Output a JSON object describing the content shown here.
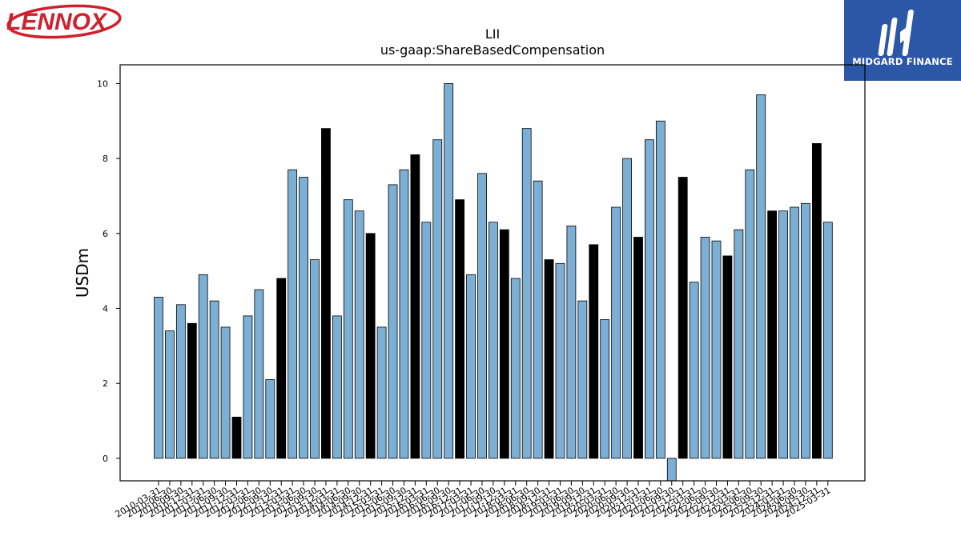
{
  "logos": {
    "left_brand": "LENNOX",
    "right_brand": "MIDGARD FINANCE"
  },
  "colors": {
    "bar_default": "#7bafd4",
    "bar_highlight": "#000000",
    "bar_edge": "#000000",
    "lennox_red": "#d0202e",
    "midgard_blue": "#2c57a6"
  },
  "chart_data": {
    "type": "bar",
    "title": "LII",
    "subtitle": "us-gaap:ShareBasedCompensation",
    "ylabel": "USDm",
    "xlabel": "",
    "ylim": [
      -0.6,
      10.5
    ],
    "yticks": [
      0,
      2,
      4,
      6,
      8,
      10
    ],
    "categories": [
      "2010-03-31",
      "2010-06-30",
      "2010-09-30",
      "2010-12-31",
      "2011-03-31",
      "2011-06-30",
      "2011-09-30",
      "2011-12-31",
      "2012-03-31",
      "2012-06-30",
      "2012-09-30",
      "2012-12-31",
      "2013-03-31",
      "2013-06-30",
      "2013-09-30",
      "2013-12-31",
      "2014-03-31",
      "2014-06-30",
      "2014-09-30",
      "2014-12-31",
      "2015-03-31",
      "2015-06-30",
      "2015-09-30",
      "2015-12-31",
      "2016-03-31",
      "2016-06-30",
      "2016-09-30",
      "2016-12-31",
      "2017-03-31",
      "2017-06-30",
      "2017-09-30",
      "2017-12-31",
      "2018-03-31",
      "2018-06-30",
      "2018-09-30",
      "2018-12-31",
      "2019-03-31",
      "2019-06-30",
      "2019-09-30",
      "2019-12-31",
      "2020-03-31",
      "2020-06-30",
      "2020-09-30",
      "2020-12-31",
      "2021-03-31",
      "2021-06-30",
      "2021-09-30",
      "2021-12-31",
      "2022-03-31",
      "2022-06-30",
      "2022-09-30",
      "2022-12-31",
      "2023-03-31",
      "2023-06-30",
      "2023-09-30",
      "2023-12-31",
      "2024-03-31",
      "2024-06-30",
      "2024-09-30",
      "2024-12-31",
      "2025-03-31"
    ],
    "values": [
      4.3,
      3.4,
      4.1,
      3.6,
      4.9,
      4.2,
      3.5,
      1.1,
      3.8,
      4.5,
      2.1,
      4.8,
      7.7,
      7.5,
      5.3,
      8.8,
      3.8,
      6.9,
      6.6,
      6.0,
      3.5,
      7.3,
      7.7,
      8.1,
      6.3,
      8.5,
      10.0,
      6.9,
      4.9,
      7.6,
      6.3,
      6.1,
      4.8,
      8.8,
      7.4,
      5.3,
      5.2,
      6.2,
      4.2,
      5.7,
      3.7,
      6.7,
      8.0,
      5.9,
      8.5,
      9.0,
      -0.6,
      7.5,
      4.7,
      5.9,
      5.8,
      5.4,
      6.1,
      7.7,
      9.7,
      6.6,
      6.6,
      6.7,
      6.8,
      8.4,
      6.3
    ],
    "highlight_indices": [
      3,
      7,
      11,
      15,
      19,
      23,
      27,
      31,
      35,
      39,
      43,
      47,
      51,
      55,
      59
    ],
    "grid": false,
    "legend": "none"
  }
}
